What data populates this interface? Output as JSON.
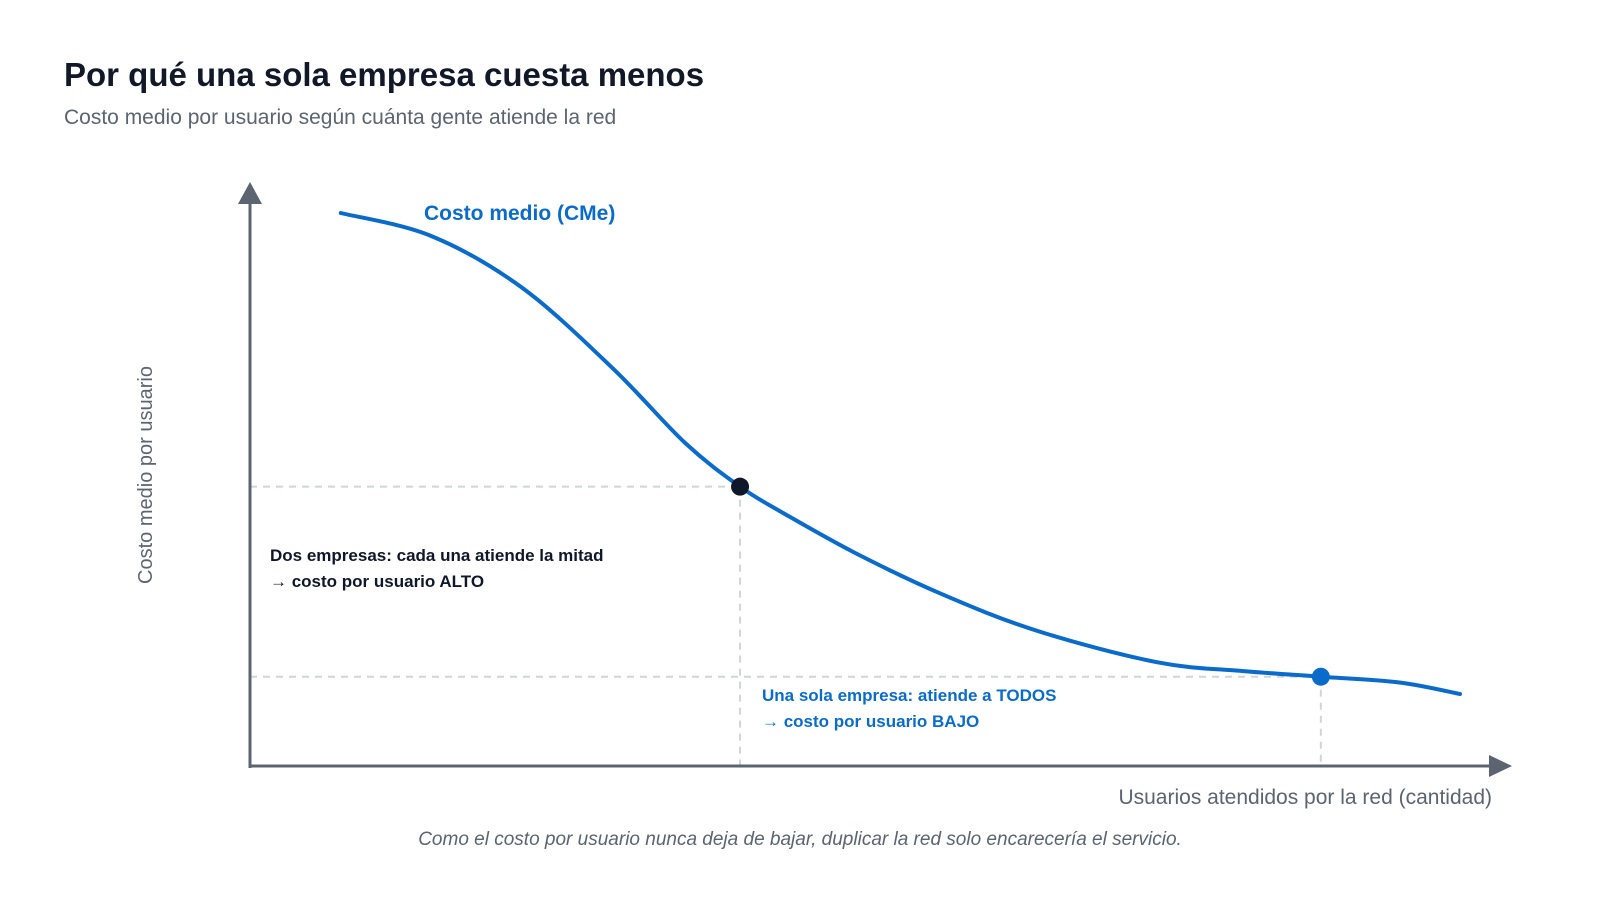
{
  "header": {
    "title": "Por qué una sola empresa cuesta menos",
    "subtitle": "Costo medio por usuario según cuánta gente atiende la red"
  },
  "chart_data": {
    "type": "line",
    "title": "Por qué una sola empresa cuesta menos",
    "subtitle": "Costo medio por usuario según cuánta gente atiende la red",
    "xlabel": "Usuarios atendidos por la red (cantidad)",
    "ylabel": "Costo medio por usuario",
    "xlim": [
      0,
      100
    ],
    "ylim": [
      0,
      100
    ],
    "grid": false,
    "ticks": false,
    "series": [
      {
        "name": "Costo medio (CMe)",
        "color": "#0b6bcb",
        "x": [
          7.5,
          15,
          22.5,
          30,
          36,
          40.5,
          44,
          50,
          57,
          65,
          75,
          82,
          88.5,
          95,
          100
        ],
        "y": [
          96,
          92,
          83,
          69,
          56,
          48.5,
          44,
          37,
          30,
          23.5,
          18,
          16.5,
          15.5,
          14.5,
          12.5
        ]
      }
    ],
    "points": [
      {
        "x": 40.5,
        "y": 48.5,
        "color": "#0f172a"
      },
      {
        "x": 88.5,
        "y": 15.5,
        "color": "#0b6bcb"
      }
    ],
    "annotations": [
      {
        "lines": [
          "Dos empresas: cada una atiende la mitad",
          "→ costo por usuario ALTO"
        ],
        "color": "#0f172a"
      },
      {
        "lines": [
          "Una sola empresa: atiende a TODOS",
          "→ costo por usuario BAJO"
        ],
        "color": "#0b6bcb"
      }
    ],
    "caption": "Como el costo por usuario nunca deja de bajar, duplicar la red solo encarecería el servicio."
  }
}
